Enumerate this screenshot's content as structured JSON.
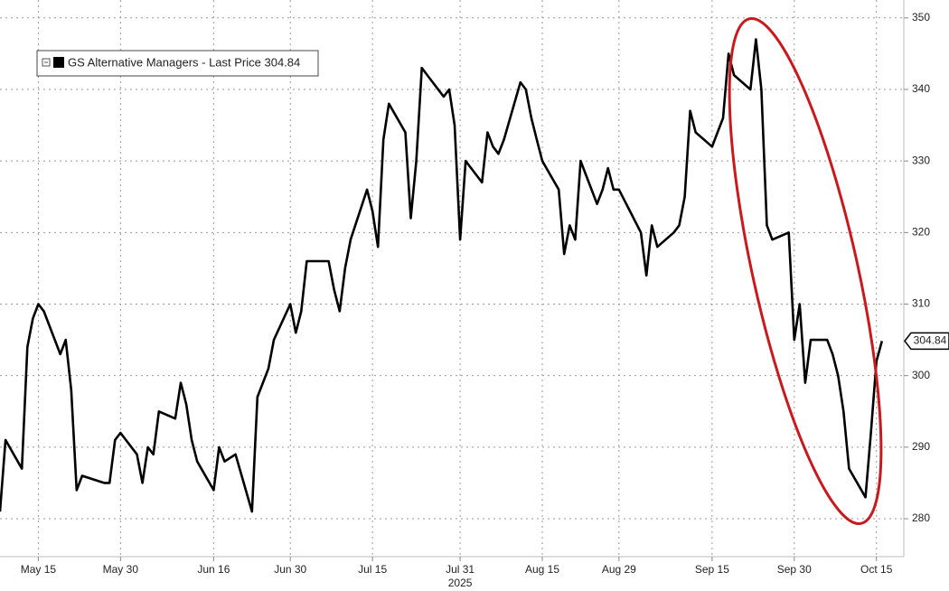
{
  "chart_data": {
    "type": "line",
    "x_axis_year": "2025",
    "x": [
      "2025-05-08",
      "2025-05-09",
      "2025-05-12",
      "2025-05-13",
      "2025-05-14",
      "2025-05-15",
      "2025-05-16",
      "2025-05-19",
      "2025-05-20",
      "2025-05-21",
      "2025-05-22",
      "2025-05-23",
      "2025-05-27",
      "2025-05-28",
      "2025-05-29",
      "2025-05-30",
      "2025-06-02",
      "2025-06-03",
      "2025-06-04",
      "2025-06-05",
      "2025-06-06",
      "2025-06-09",
      "2025-06-10",
      "2025-06-11",
      "2025-06-12",
      "2025-06-13",
      "2025-06-16",
      "2025-06-17",
      "2025-06-18",
      "2025-06-20",
      "2025-06-23",
      "2025-06-24",
      "2025-06-25",
      "2025-06-26",
      "2025-06-27",
      "2025-06-30",
      "2025-07-01",
      "2025-07-02",
      "2025-07-03",
      "2025-07-07",
      "2025-07-08",
      "2025-07-09",
      "2025-07-10",
      "2025-07-11",
      "2025-07-14",
      "2025-07-15",
      "2025-07-16",
      "2025-07-17",
      "2025-07-18",
      "2025-07-21",
      "2025-07-22",
      "2025-07-23",
      "2025-07-24",
      "2025-07-25",
      "2025-07-28",
      "2025-07-29",
      "2025-07-30",
      "2025-07-31",
      "2025-08-01",
      "2025-08-04",
      "2025-08-05",
      "2025-08-06",
      "2025-08-07",
      "2025-08-08",
      "2025-08-11",
      "2025-08-12",
      "2025-08-13",
      "2025-08-14",
      "2025-08-15",
      "2025-08-18",
      "2025-08-19",
      "2025-08-20",
      "2025-08-21",
      "2025-08-22",
      "2025-08-25",
      "2025-08-26",
      "2025-08-27",
      "2025-08-28",
      "2025-08-29",
      "2025-09-02",
      "2025-09-03",
      "2025-09-04",
      "2025-09-05",
      "2025-09-08",
      "2025-09-09",
      "2025-09-10",
      "2025-09-11",
      "2025-09-12",
      "2025-09-15",
      "2025-09-16",
      "2025-09-17",
      "2025-09-18",
      "2025-09-19",
      "2025-09-22",
      "2025-09-23",
      "2025-09-24",
      "2025-09-25",
      "2025-09-26",
      "2025-09-29",
      "2025-09-30",
      "2025-10-01",
      "2025-10-02",
      "2025-10-03",
      "2025-10-06",
      "2025-10-07",
      "2025-10-08",
      "2025-10-09",
      "2025-10-10",
      "2025-10-13",
      "2025-10-14",
      "2025-10-15",
      "2025-10-16"
    ],
    "series": [
      {
        "name": "GS Alternative Managers - Last Price 304.84",
        "color": "#000000",
        "values": [
          281,
          291,
          287,
          304,
          308,
          310,
          309,
          303,
          305,
          298,
          284,
          286,
          285,
          285,
          291,
          292,
          289,
          285,
          290,
          289,
          295,
          294,
          299,
          296,
          291,
          288,
          284,
          290,
          288,
          289,
          281,
          297,
          299,
          301,
          305,
          310,
          306,
          309,
          316,
          316,
          312,
          309,
          315,
          319,
          326,
          323,
          318,
          333,
          338,
          334,
          322,
          330,
          343,
          342,
          339,
          340,
          335,
          319,
          330,
          327,
          334,
          332,
          331,
          333,
          341,
          340,
          336,
          333,
          330,
          326,
          317,
          321,
          319,
          330,
          324,
          326,
          329,
          326,
          326,
          320,
          314,
          321,
          318,
          320,
          321,
          325,
          337,
          334,
          332,
          334,
          336,
          345,
          342,
          340,
          347,
          340,
          321,
          319,
          320,
          305,
          310,
          299,
          305,
          305,
          303,
          300,
          295,
          287,
          283,
          292,
          302,
          304.84
        ]
      }
    ],
    "xlim": [
      "2025-05-08",
      "2025-10-20"
    ],
    "xticks": [
      {
        "value": "2025-05-15",
        "label": "May 15"
      },
      {
        "value": "2025-05-30",
        "label": "May 30"
      },
      {
        "value": "2025-06-16",
        "label": "Jun 16"
      },
      {
        "value": "2025-06-30",
        "label": "Jun 30"
      },
      {
        "value": "2025-07-15",
        "label": "Jul 15"
      },
      {
        "value": "2025-07-31",
        "label": "Jul 31"
      },
      {
        "value": "2025-08-15",
        "label": "Aug 15"
      },
      {
        "value": "2025-08-29",
        "label": "Aug 29"
      },
      {
        "value": "2025-09-15",
        "label": "Sep 15"
      },
      {
        "value": "2025-09-30",
        "label": "Sep 30"
      },
      {
        "value": "2025-10-15",
        "label": "Oct 15"
      }
    ],
    "ylim": [
      274.7,
      352.5
    ],
    "yticks": [
      280,
      290,
      300,
      310,
      320,
      330,
      340,
      350
    ],
    "grid": true
  }
}
